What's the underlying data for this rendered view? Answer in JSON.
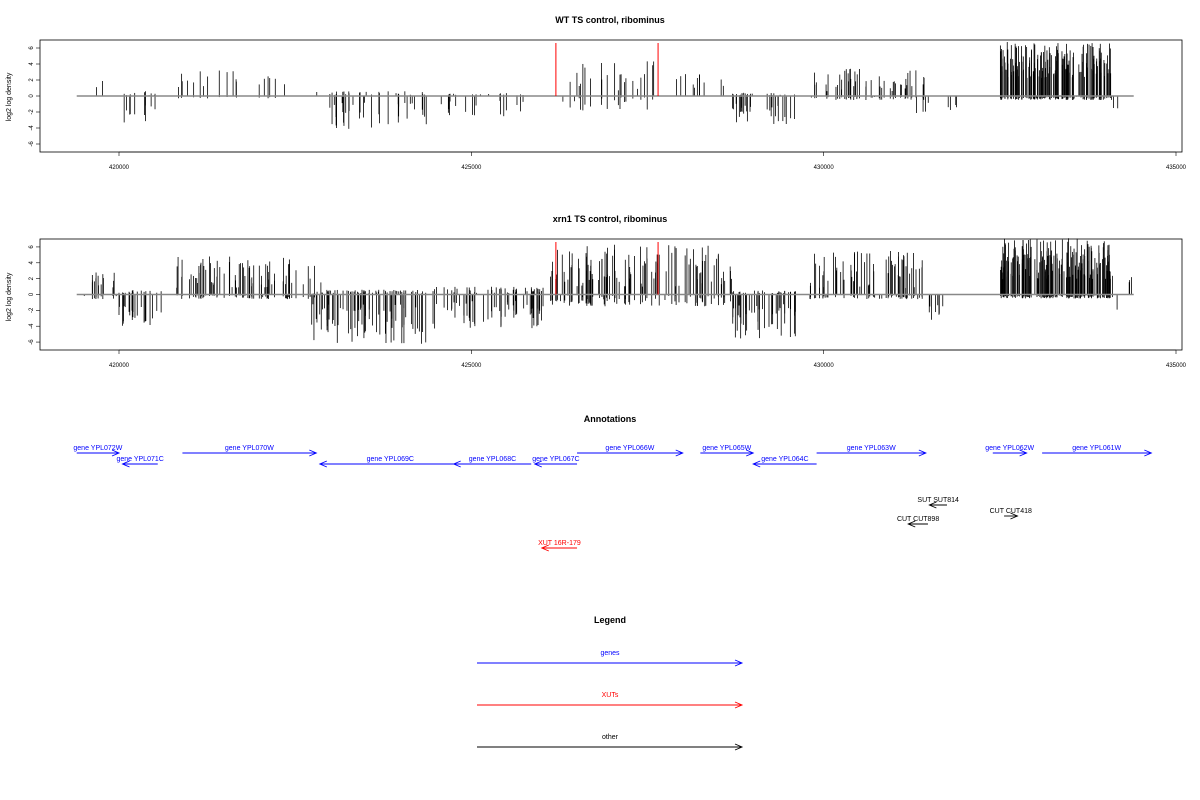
{
  "panels": [
    {
      "title": "WT TS control, ribominus",
      "ylabel": "log2 log density",
      "yticks": [
        -6,
        -4,
        -2,
        0,
        2,
        4,
        6
      ],
      "xticks": [
        420000,
        425000,
        430000,
        435000
      ],
      "xlim": [
        419400,
        435100
      ],
      "ylim": [
        -7,
        7
      ],
      "baseline": [
        419400,
        434400
      ],
      "red_lines": [
        426200,
        427650
      ],
      "density_seed": 7,
      "density_segments": [
        {
          "from": 419500,
          "to": 420000,
          "count": 6,
          "up": [
            1.0,
            2.6
          ],
          "down": [
            0,
            0
          ]
        },
        {
          "from": 420000,
          "to": 420600,
          "count": 12,
          "up": [
            0,
            0.6
          ],
          "down": [
            -3.6,
            -1
          ]
        },
        {
          "from": 420800,
          "to": 422500,
          "count": 22,
          "up": [
            0.8,
            3.2
          ],
          "down": [
            -0.3,
            0
          ]
        },
        {
          "from": 422800,
          "to": 424400,
          "count": 40,
          "up": [
            0,
            0.6
          ],
          "down": [
            -4.2,
            -0.8
          ]
        },
        {
          "from": 424400,
          "to": 425900,
          "count": 24,
          "up": [
            0,
            0.4
          ],
          "down": [
            -2.6,
            -0.6
          ]
        },
        {
          "from": 426200,
          "to": 427600,
          "count": 26,
          "up": [
            0.6,
            4.6
          ],
          "down": [
            -1.8,
            0
          ]
        },
        {
          "from": 427900,
          "to": 428600,
          "count": 12,
          "up": [
            0.8,
            2.8
          ],
          "down": [
            0,
            0
          ]
        },
        {
          "from": 428700,
          "to": 429600,
          "count": 34,
          "up": [
            0,
            0.4
          ],
          "down": [
            -3.6,
            -0.8
          ]
        },
        {
          "from": 429800,
          "to": 431500,
          "count": 55,
          "up": [
            0.6,
            3.4
          ],
          "down": [
            -0.5,
            0
          ]
        },
        {
          "from": 431300,
          "to": 431900,
          "count": 8,
          "up": [
            0,
            0
          ],
          "down": [
            -2.2,
            -0.8
          ]
        },
        {
          "from": 432500,
          "to": 434100,
          "count": 190,
          "up": [
            2.2,
            6.8
          ],
          "down": [
            -0.5,
            0
          ]
        },
        {
          "from": 434100,
          "to": 434200,
          "count": 2,
          "up": [
            0,
            0
          ],
          "down": [
            -2.6,
            -1.5
          ]
        }
      ]
    },
    {
      "title": "xrn1 TS control, ribominus",
      "ylabel": "log2 log density",
      "yticks": [
        -6,
        -4,
        -2,
        0,
        2,
        4,
        6
      ],
      "xticks": [
        420000,
        425000,
        430000,
        435000
      ],
      "xlim": [
        419400,
        435100
      ],
      "ylim": [
        -7,
        7
      ],
      "baseline": [
        419400,
        434400
      ],
      "red_lines": [
        426200,
        427650
      ],
      "density_seed": 19,
      "density_segments": [
        {
          "from": 419500,
          "to": 420000,
          "count": 16,
          "up": [
            0.8,
            2.8
          ],
          "down": [
            -0.6,
            0
          ]
        },
        {
          "from": 420000,
          "to": 420600,
          "count": 26,
          "up": [
            0,
            0.6
          ],
          "down": [
            -4.0,
            -1.2
          ]
        },
        {
          "from": 420800,
          "to": 422900,
          "count": 90,
          "up": [
            0.8,
            4.9
          ],
          "down": [
            -0.6,
            0
          ]
        },
        {
          "from": 422700,
          "to": 424400,
          "count": 90,
          "up": [
            0,
            0.6
          ],
          "down": [
            -6.4,
            -1.2
          ]
        },
        {
          "from": 424400,
          "to": 426100,
          "count": 70,
          "up": [
            0,
            1.0
          ],
          "down": [
            -4.3,
            -0.8
          ]
        },
        {
          "from": 426100,
          "to": 428700,
          "count": 120,
          "up": [
            0.8,
            6.3
          ],
          "down": [
            -1.5,
            0
          ]
        },
        {
          "from": 428700,
          "to": 429600,
          "count": 50,
          "up": [
            0,
            0.5
          ],
          "down": [
            -5.6,
            -1.2
          ]
        },
        {
          "from": 429800,
          "to": 431400,
          "count": 80,
          "up": [
            0.8,
            5.6
          ],
          "down": [
            -0.6,
            0
          ]
        },
        {
          "from": 431400,
          "to": 431800,
          "count": 10,
          "up": [
            0,
            0
          ],
          "down": [
            -3.2,
            -1.2
          ]
        },
        {
          "from": 432500,
          "to": 434100,
          "count": 230,
          "up": [
            1.8,
            7.1
          ],
          "down": [
            -0.5,
            0
          ]
        },
        {
          "from": 434100,
          "to": 434200,
          "count": 2,
          "up": [
            0,
            0
          ],
          "down": [
            -2.0,
            -1.0
          ]
        },
        {
          "from": 434250,
          "to": 434400,
          "count": 3,
          "up": [
            0.8,
            2.5
          ],
          "down": [
            0,
            0
          ]
        }
      ]
    }
  ],
  "annotations": {
    "title": "Annotations",
    "items": [
      {
        "label": "gene YPL072W",
        "start": 419400,
        "end": 420000,
        "dir": "right",
        "color": "#0000ff",
        "lane": 0
      },
      {
        "label": "gene YPL071C",
        "start": 420050,
        "end": 420550,
        "dir": "left",
        "color": "#0000ff",
        "lane": 1
      },
      {
        "label": "gene YPL070W",
        "start": 420900,
        "end": 422800,
        "dir": "right",
        "color": "#0000ff",
        "lane": 0
      },
      {
        "label": "gene YPL069C",
        "start": 422850,
        "end": 424850,
        "dir": "left",
        "color": "#0000ff",
        "lane": 1
      },
      {
        "label": "gene YPL068C",
        "start": 424750,
        "end": 425850,
        "dir": "left",
        "color": "#0000ff",
        "lane": 1
      },
      {
        "label": "gene YPL067C",
        "start": 425900,
        "end": 426500,
        "dir": "left",
        "color": "#0000ff",
        "lane": 1
      },
      {
        "label": "gene YPL066W",
        "start": 426500,
        "end": 428000,
        "dir": "right",
        "color": "#0000ff",
        "lane": 0
      },
      {
        "label": "gene YPL065W",
        "start": 428250,
        "end": 429000,
        "dir": "right",
        "color": "#0000ff",
        "lane": 0
      },
      {
        "label": "gene YPL064C",
        "start": 429000,
        "end": 429900,
        "dir": "left",
        "color": "#0000ff",
        "lane": 1
      },
      {
        "label": "gene YPL063W",
        "start": 429900,
        "end": 431450,
        "dir": "right",
        "color": "#0000ff",
        "lane": 0
      },
      {
        "label": "gene YPL062W",
        "start": 432400,
        "end": 432880,
        "dir": "right",
        "color": "#0000ff",
        "lane": 0
      },
      {
        "label": "gene YPL061W",
        "start": 433100,
        "end": 434650,
        "dir": "right",
        "color": "#0000ff",
        "lane": 0
      },
      {
        "label": "SUT SUT814",
        "start": 431500,
        "end": 431750,
        "dir": "left",
        "color": "#000000",
        "lane": 2
      },
      {
        "label": "CUT CUT418",
        "start": 432560,
        "end": 432750,
        "dir": "right",
        "color": "#000000",
        "lane": 3
      },
      {
        "label": "CUT CUT898",
        "start": 431200,
        "end": 431480,
        "dir": "left",
        "color": "#000000",
        "lane": 4
      },
      {
        "label": "XUT 16R-179",
        "start": 426000,
        "end": 426500,
        "dir": "left",
        "color": "#ff0000",
        "lane": 5
      }
    ]
  },
  "legend": {
    "title": "Legend",
    "entries": [
      {
        "label": "genes",
        "color": "#0000ff"
      },
      {
        "label": "XUTs",
        "color": "#ff0000"
      },
      {
        "label": "other",
        "color": "#000000"
      }
    ]
  }
}
